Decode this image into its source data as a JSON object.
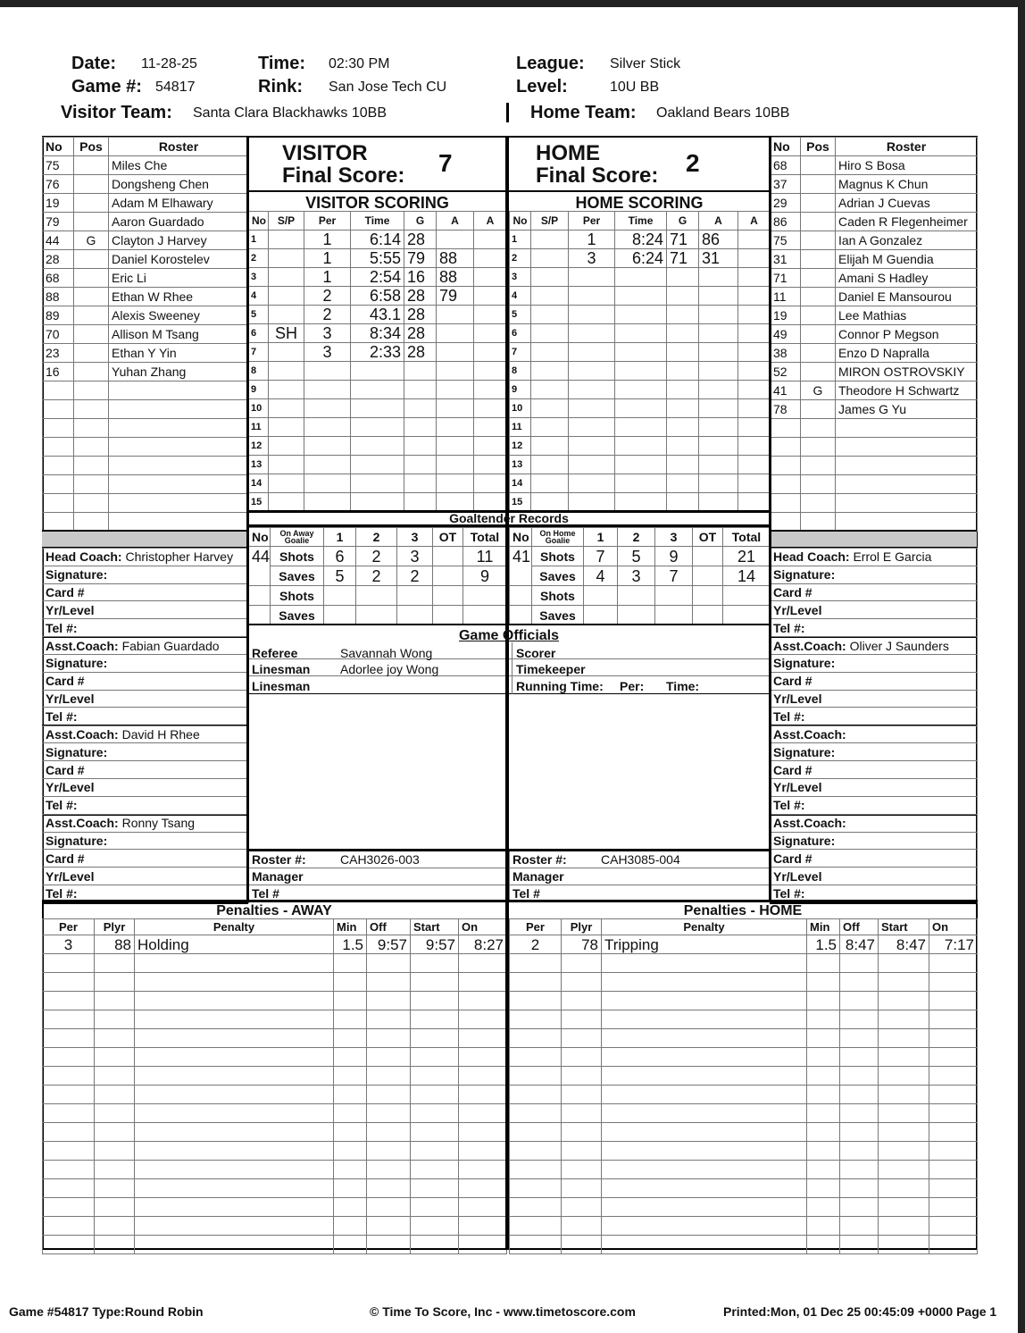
{
  "header": {
    "date_label": "Date:",
    "date": "11-28-25",
    "time_label": "Time:",
    "time": "02:30 PM",
    "league_label": "League:",
    "league": "Silver Stick",
    "game_label": "Game #:",
    "game": "54817",
    "rink_label": "Rink:",
    "rink": "San Jose Tech CU",
    "level_label": "Level:",
    "level": "10U BB",
    "visitor_team_label": "Visitor Team:",
    "visitor_team": "Santa Clara Blackhawks 10BB",
    "home_team_label": "Home Team:",
    "home_team": "Oakland  Bears 10BB"
  },
  "roster_headers": [
    "No",
    "Pos",
    "Roster"
  ],
  "visitor_roster": [
    [
      "75",
      "",
      "Miles Che"
    ],
    [
      "76",
      "",
      "Dongsheng Chen"
    ],
    [
      "19",
      "",
      "Adam M Elhawary"
    ],
    [
      "79",
      "",
      "Aaron Guardado"
    ],
    [
      "44",
      "G",
      "Clayton J Harvey"
    ],
    [
      "28",
      "",
      "Daniel Korostelev"
    ],
    [
      "68",
      "",
      "Eric Li"
    ],
    [
      "88",
      "",
      "Ethan W Rhee"
    ],
    [
      "89",
      "",
      "Alexis Sweeney"
    ],
    [
      "70",
      "",
      "Allison M Tsang"
    ],
    [
      "23",
      "",
      "Ethan Y Yin"
    ],
    [
      "16",
      "",
      "Yuhan Zhang"
    ]
  ],
  "home_roster": [
    [
      "68",
      "",
      "Hiro S Bosa"
    ],
    [
      "37",
      "",
      "Magnus K Chun"
    ],
    [
      "29",
      "",
      "Adrian J Cuevas"
    ],
    [
      "86",
      "",
      "Caden R Flegenheimer"
    ],
    [
      "75",
      "",
      "Ian A Gonzalez"
    ],
    [
      "31",
      "",
      "Elijah M Guendia"
    ],
    [
      "71",
      "",
      "Amani S Hadley"
    ],
    [
      "11",
      "",
      "Daniel E Mansourou"
    ],
    [
      "19",
      "",
      "Lee Mathias"
    ],
    [
      "49",
      "",
      "Connor P Megson"
    ],
    [
      "38",
      "",
      "Enzo D Napralla"
    ],
    [
      "52",
      "",
      "MIRON OSTROVSKIY"
    ],
    [
      "41",
      "G",
      "Theodore H Schwartz"
    ],
    [
      "78",
      "",
      "James G Yu"
    ]
  ],
  "visitor_score": {
    "team": "VISITOR",
    "label": "Final Score:",
    "value": "7",
    "scoring_title": "VISITOR SCORING"
  },
  "home_score": {
    "team": "HOME",
    "label": "Final Score:",
    "value": "2",
    "scoring_title": "HOME SCORING"
  },
  "scoring_headers": [
    "No",
    "S/P",
    "Per",
    "Time",
    "G",
    "A",
    "A"
  ],
  "visitor_goals": [
    [
      "1",
      "",
      "1",
      "6:14",
      "28",
      "",
      ""
    ],
    [
      "2",
      "",
      "1",
      "5:55",
      "79",
      "88",
      ""
    ],
    [
      "3",
      "",
      "1",
      "2:54",
      "16",
      "88",
      ""
    ],
    [
      "4",
      "",
      "2",
      "6:58",
      "28",
      "79",
      ""
    ],
    [
      "5",
      "",
      "2",
      "43.1",
      "28",
      "",
      ""
    ],
    [
      "6",
      "SH",
      "3",
      "8:34",
      "28",
      "",
      ""
    ],
    [
      "7",
      "",
      "3",
      "2:33",
      "28",
      "",
      ""
    ]
  ],
  "home_goals": [
    [
      "1",
      "",
      "1",
      "8:24",
      "71",
      "86",
      ""
    ],
    [
      "2",
      "",
      "3",
      "6:24",
      "71",
      "31",
      ""
    ]
  ],
  "goalie": {
    "title": "Goaltender Records",
    "away_headers": [
      "No",
      "On Away Goalie",
      "1",
      "2",
      "3",
      "OT",
      "Total"
    ],
    "home_headers": [
      "No",
      "On Home Goalie",
      "1",
      "2",
      "3",
      "OT",
      "Total"
    ],
    "shots_label": "Shots",
    "saves_label": "Saves",
    "away": {
      "no": "44",
      "shots": [
        "6",
        "2",
        "3",
        "",
        "11"
      ],
      "saves": [
        "5",
        "2",
        "2",
        "",
        "9"
      ]
    },
    "home": {
      "no": "41",
      "shots": [
        "7",
        "5",
        "9",
        "",
        "21"
      ],
      "saves": [
        "4",
        "3",
        "7",
        "",
        "14"
      ]
    }
  },
  "officials": {
    "title": "Game Officials",
    "referee_label": "Referee",
    "referee": "Savannah Wong",
    "linesman_label": "Linesman",
    "linesman1": "Adorlee joy Wong",
    "linesman2": "",
    "scorer_label": "Scorer",
    "timekeeper_label": "Timekeeper",
    "running_time_label": "Running Time:",
    "per_label": "Per:",
    "time_label": "Time:"
  },
  "coach_fields": [
    "Signature:",
    "Card #",
    "Yr/Level",
    "Tel #:"
  ],
  "visitor_coaches": [
    [
      "Head Coach:",
      "Christopher Harvey"
    ],
    [
      "Asst.Coach:",
      "Fabian Guardado"
    ],
    [
      "Asst.Coach:",
      "David H Rhee"
    ],
    [
      "Asst.Coach:",
      "Ronny Tsang"
    ]
  ],
  "home_coaches": [
    [
      "Head Coach:",
      "Errol E Garcia"
    ],
    [
      "Asst.Coach:",
      "Oliver J Saunders"
    ],
    [
      "Asst.Coach:",
      ""
    ],
    [
      "Asst.Coach:",
      ""
    ]
  ],
  "team_info": {
    "roster_label": "Roster #:",
    "manager_label": "Manager",
    "tel_label": "Tel #",
    "visitor_roster_no": "CAH3026-003",
    "home_roster_no": "CAH3085-004"
  },
  "penalties": {
    "away_title": "Penalties - AWAY",
    "home_title": "Penalties - HOME",
    "headers": [
      "Per",
      "Plyr",
      "Penalty",
      "Min",
      "Off",
      "Start",
      "On"
    ],
    "away": [
      [
        "3",
        "88",
        "Holding",
        "1.5",
        "9:57",
        "9:57",
        "8:27"
      ]
    ],
    "home": [
      [
        "2",
        "78",
        "Tripping",
        "1.5",
        "8:47",
        "8:47",
        "7:17"
      ]
    ]
  },
  "footer": {
    "left": "Game #54817 Type:Round Robin",
    "center": "© Time To Score, Inc - www.timetoscore.com",
    "right": "Printed:Mon, 01 Dec 25 00:45:09 +0000 Page 1"
  }
}
